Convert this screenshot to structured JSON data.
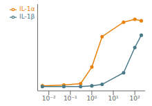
{
  "chart_data": {
    "type": "line",
    "log": "x",
    "x": [
      0.005,
      0.05,
      0.3,
      1,
      3,
      30,
      100,
      200
    ],
    "series": [
      {
        "name": "IL-1α",
        "color": "#E8820C",
        "marker": "circle",
        "values": [
          0.02,
          0.03,
          0.05,
          0.28,
          0.7,
          0.9,
          0.94,
          0.92
        ]
      },
      {
        "name": "IL-1β",
        "color": "#4A7A8A",
        "marker": "circle",
        "values": [
          0.01,
          0.01,
          0.01,
          0.02,
          0.04,
          0.2,
          0.55,
          0.72
        ]
      }
    ],
    "xlim": [
      0.003,
      300
    ],
    "ylim": [
      -0.05,
      1.15
    ],
    "xticks": [
      {
        "value": 0.01,
        "label": "10⁻²"
      },
      {
        "value": 0.1,
        "label": "10⁻¹"
      },
      {
        "value": 1,
        "label": "10⁰"
      },
      {
        "value": 10,
        "label": "10¹"
      },
      {
        "value": 100,
        "label": "10²"
      }
    ],
    "tick_labels": "x",
    "grid": false,
    "legend": "upper left"
  }
}
